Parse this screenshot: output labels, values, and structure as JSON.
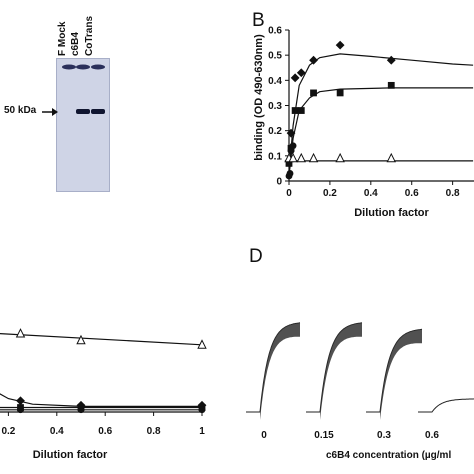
{
  "panels": {
    "a": {
      "lanes": [
        "F Mock",
        "c6B4",
        "CoTrans"
      ],
      "marker": "50 kDa"
    },
    "b": {
      "letter": "B"
    },
    "d": {
      "letter": "D",
      "xlabel": "c6B4 concentration (µg/ml",
      "conditions": [
        "0",
        "0.15",
        "0.3",
        "0.6"
      ],
      "trace_peaks": [
        0.82,
        0.82,
        0.76,
        0.12
      ]
    }
  },
  "chart_data": [
    {
      "type": "scatter",
      "panel": "B",
      "xlabel": "Dilution factor",
      "ylabel": "binding (OD 490-630nm)",
      "xlim": [
        0,
        0.9
      ],
      "ylim": [
        0,
        0.6
      ],
      "xticks": [
        "0",
        "0.2",
        "0.4",
        "0.6",
        "0.8"
      ],
      "yticks": [
        "0",
        "0.1",
        "0.2",
        "0.3",
        "0.4",
        "0.5",
        "0.6"
      ],
      "series": [
        {
          "marker": "diamond-filled",
          "x": [
            0,
            0.01,
            0.03,
            0.06,
            0.12,
            0.25,
            0.5
          ],
          "y": [
            0.08,
            0.19,
            0.41,
            0.43,
            0.48,
            0.54,
            0.48
          ],
          "fit": [
            [
              0,
              0.03
            ],
            [
              0.02,
              0.22
            ],
            [
              0.05,
              0.38
            ],
            [
              0.1,
              0.46
            ],
            [
              0.15,
              0.49
            ],
            [
              0.25,
              0.505
            ],
            [
              0.4,
              0.495
            ],
            [
              0.6,
              0.48
            ],
            [
              0.8,
              0.465
            ],
            [
              0.9,
              0.46
            ]
          ]
        },
        {
          "marker": "square-filled",
          "x": [
            0,
            0.01,
            0.03,
            0.06,
            0.12,
            0.25,
            0.5
          ],
          "y": [
            0.07,
            0.13,
            0.28,
            0.28,
            0.35,
            0.35,
            0.38
          ],
          "fit": [
            [
              0,
              0.02
            ],
            [
              0.02,
              0.17
            ],
            [
              0.05,
              0.28
            ],
            [
              0.1,
              0.33
            ],
            [
              0.15,
              0.355
            ],
            [
              0.25,
              0.365
            ],
            [
              0.5,
              0.37
            ],
            [
              0.9,
              0.37
            ]
          ]
        },
        {
          "marker": "circle-filled",
          "x": [
            0,
            0.005,
            0.01,
            0.02
          ],
          "y": [
            0.02,
            0.03,
            0.12,
            0.14
          ],
          "fit": []
        },
        {
          "marker": "triangle-open",
          "x": [
            0,
            0.02,
            0.06,
            0.12,
            0.25,
            0.5
          ],
          "y": [
            0.09,
            0.09,
            0.09,
            0.09,
            0.09,
            0.09
          ],
          "fit": [
            [
              0,
              0.08
            ],
            [
              0.9,
              0.08
            ]
          ]
        }
      ]
    },
    {
      "type": "scatter",
      "panel": "C",
      "xlabel": "Dilution factor",
      "xlim": [
        0,
        1
      ],
      "xticks": [
        "0.2",
        "0.4",
        "0.6",
        "0.8",
        "1"
      ],
      "ylim": [
        0,
        0.5
      ],
      "series": [
        {
          "marker": "triangle-open",
          "x": [
            0,
            0.25,
            0.5,
            1
          ],
          "y": [
            0.33,
            0.35,
            0.32,
            0.3
          ],
          "fit": [
            [
              0,
              0.36
            ],
            [
              1,
              0.3
            ]
          ]
        },
        {
          "marker": "diamond-filled",
          "x": [
            0.02,
            0.25,
            0.5,
            1
          ],
          "y": [
            0.22,
            0.05,
            0.03,
            0.03
          ],
          "fit": [
            [
              0,
              0.3
            ],
            [
              0.05,
              0.2
            ],
            [
              0.1,
              0.12
            ],
            [
              0.2,
              0.06
            ],
            [
              0.3,
              0.035
            ],
            [
              0.5,
              0.025
            ],
            [
              1,
              0.025
            ]
          ]
        },
        {
          "marker": "square-filled",
          "x": [
            0.02,
            0.25,
            0.5,
            1
          ],
          "y": [
            0.02,
            0.02,
            0.02,
            0.02
          ],
          "fit": [
            [
              0,
              0.02
            ],
            [
              1,
              0.02
            ]
          ]
        },
        {
          "marker": "circle-filled",
          "x": [
            0.02,
            0.25,
            0.5,
            1
          ],
          "y": [
            0.01,
            0.01,
            0.01,
            0.01
          ],
          "fit": [
            [
              0,
              0.01
            ],
            [
              1,
              0.01
            ]
          ]
        }
      ]
    }
  ]
}
